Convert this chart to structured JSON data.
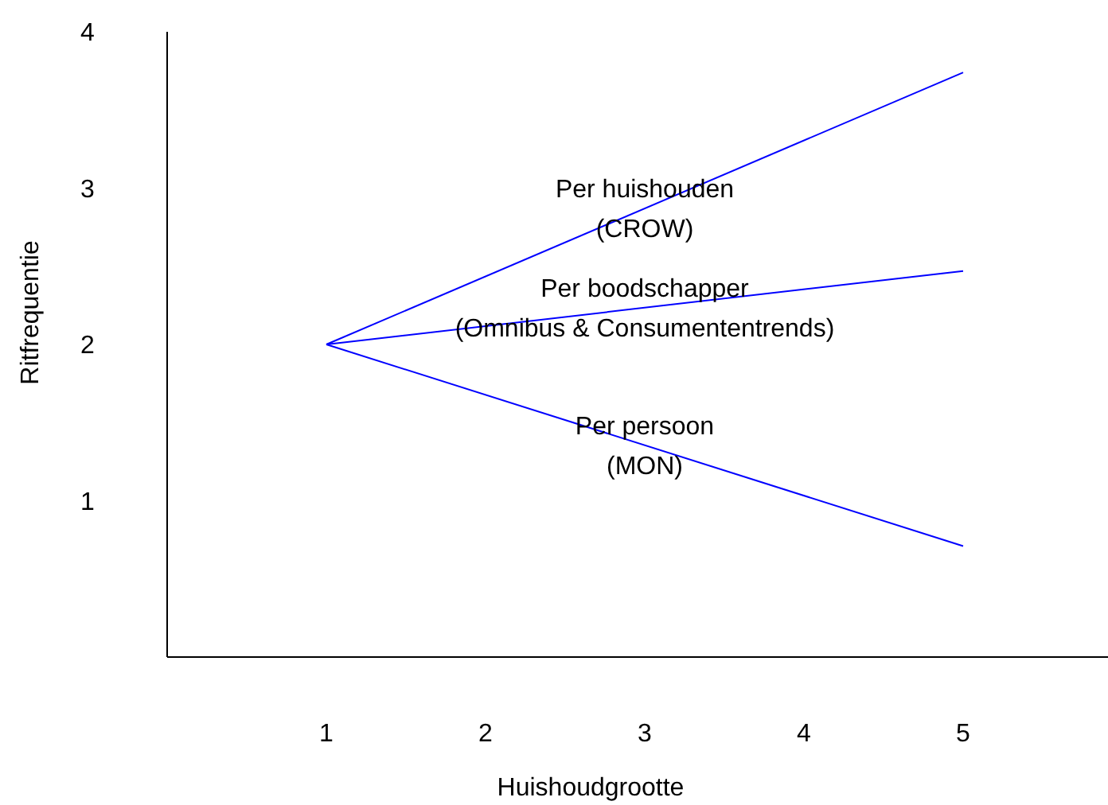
{
  "chart_data": {
    "type": "line",
    "xlabel": "Huishoudgrootte",
    "ylabel": "Ritfrequentie",
    "xlim": [
      0,
      6
    ],
    "ylim": [
      0,
      4
    ],
    "xticks": [
      1,
      2,
      3,
      4,
      5
    ],
    "yticks": [
      1,
      2,
      3,
      4
    ],
    "x": [
      1,
      5
    ],
    "grid": false,
    "legend": false,
    "marker": "none",
    "line_style": "solid",
    "series": [
      {
        "name": "Per huishouden\n(CROW)",
        "color": "#0000ff",
        "values": [
          2,
          3.74
        ]
      },
      {
        "name": "Per boodschapper\n(Omnibus & Consumententrends)",
        "color": "#0000ff",
        "values": [
          2,
          2.47
        ]
      },
      {
        "name": "Per persoon\n(MON)",
        "color": "#0000ff",
        "values": [
          2,
          0.71
        ]
      }
    ]
  }
}
